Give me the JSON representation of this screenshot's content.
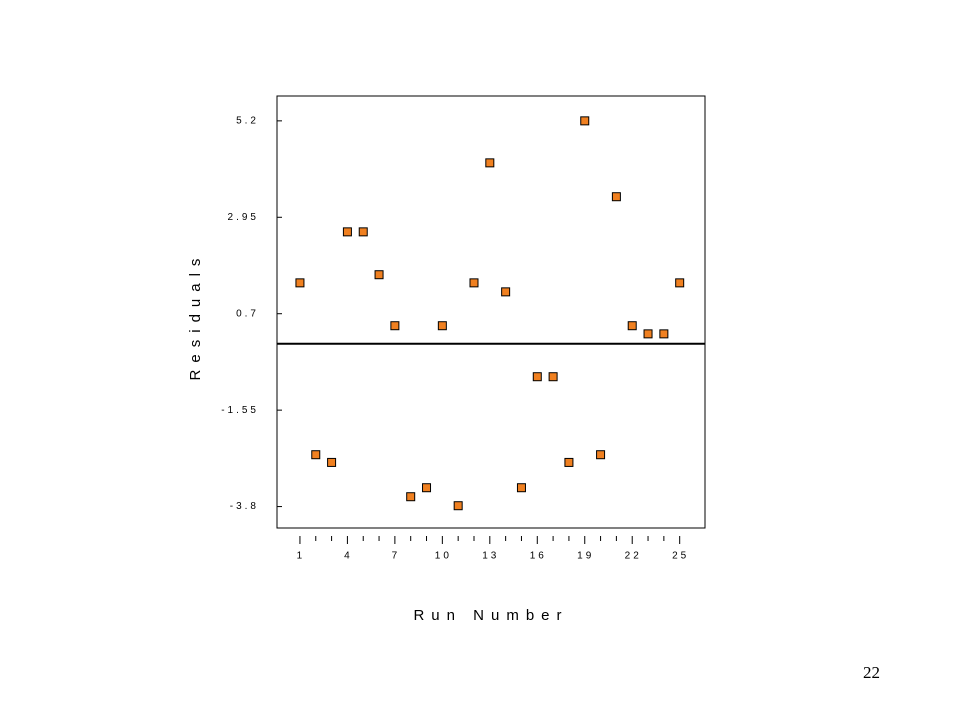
{
  "chart_data": {
    "type": "scatter",
    "xlabel": "Run Number",
    "ylabel": "Residuals",
    "x": [
      1,
      2,
      3,
      4,
      5,
      6,
      7,
      8,
      9,
      10,
      11,
      12,
      13,
      14,
      15,
      16,
      17,
      18,
      19,
      20,
      21,
      22,
      23,
      24,
      25
    ],
    "values": [
      1.42,
      -2.59,
      -2.77,
      2.61,
      2.61,
      1.61,
      0.42,
      -3.57,
      -3.36,
      0.42,
      -3.78,
      1.42,
      4.22,
      1.21,
      -3.36,
      -0.77,
      -0.77,
      -2.77,
      5.2,
      -2.59,
      3.43,
      0.42,
      0.23,
      0.23,
      1.42
    ],
    "color": "#f08020",
    "xlim": [
      -0.45,
      26.6
    ],
    "ylim": [
      -4.3,
      5.78
    ],
    "xticks": [
      1,
      4,
      7,
      10,
      13,
      16,
      19,
      22,
      25
    ],
    "xminorticks": [
      2,
      3,
      5,
      6,
      8,
      9,
      11,
      12,
      14,
      15,
      17,
      18,
      20,
      21,
      23,
      24
    ],
    "yticks": [
      -3.8,
      -1.55,
      0.7,
      2.95,
      5.2
    ],
    "hline": 0
  },
  "page_number": "22"
}
